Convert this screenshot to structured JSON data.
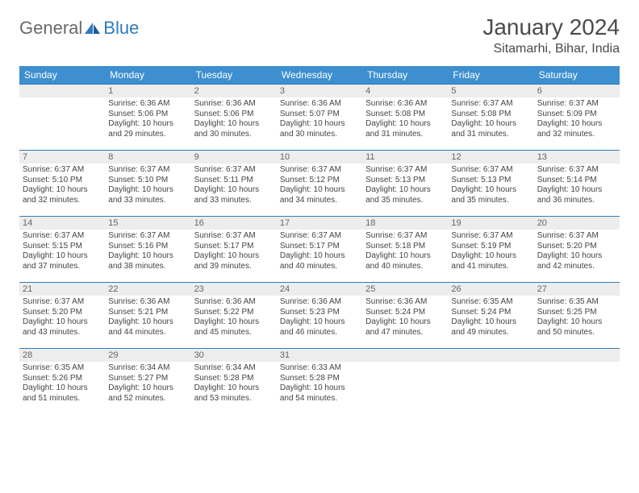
{
  "logo": {
    "general": "General",
    "blue": "Blue"
  },
  "title": "January 2024",
  "location": "Sitamarhi, Bihar, India",
  "weekdays": [
    "Sunday",
    "Monday",
    "Tuesday",
    "Wednesday",
    "Thursday",
    "Friday",
    "Saturday"
  ],
  "colors": {
    "header_bg": "#3d8fcf",
    "header_text": "#ffffff",
    "daynum_bg": "#ededed",
    "rule": "#2f7bbf",
    "text": "#444444",
    "title_color": "#4a4a4a"
  },
  "first_weekday_index": 1,
  "days": [
    {
      "n": 1,
      "sunrise": "6:36 AM",
      "sunset": "5:06 PM",
      "daylight": "10 hours and 29 minutes."
    },
    {
      "n": 2,
      "sunrise": "6:36 AM",
      "sunset": "5:06 PM",
      "daylight": "10 hours and 30 minutes."
    },
    {
      "n": 3,
      "sunrise": "6:36 AM",
      "sunset": "5:07 PM",
      "daylight": "10 hours and 30 minutes."
    },
    {
      "n": 4,
      "sunrise": "6:36 AM",
      "sunset": "5:08 PM",
      "daylight": "10 hours and 31 minutes."
    },
    {
      "n": 5,
      "sunrise": "6:37 AM",
      "sunset": "5:08 PM",
      "daylight": "10 hours and 31 minutes."
    },
    {
      "n": 6,
      "sunrise": "6:37 AM",
      "sunset": "5:09 PM",
      "daylight": "10 hours and 32 minutes."
    },
    {
      "n": 7,
      "sunrise": "6:37 AM",
      "sunset": "5:10 PM",
      "daylight": "10 hours and 32 minutes."
    },
    {
      "n": 8,
      "sunrise": "6:37 AM",
      "sunset": "5:10 PM",
      "daylight": "10 hours and 33 minutes."
    },
    {
      "n": 9,
      "sunrise": "6:37 AM",
      "sunset": "5:11 PM",
      "daylight": "10 hours and 33 minutes."
    },
    {
      "n": 10,
      "sunrise": "6:37 AM",
      "sunset": "5:12 PM",
      "daylight": "10 hours and 34 minutes."
    },
    {
      "n": 11,
      "sunrise": "6:37 AM",
      "sunset": "5:13 PM",
      "daylight": "10 hours and 35 minutes."
    },
    {
      "n": 12,
      "sunrise": "6:37 AM",
      "sunset": "5:13 PM",
      "daylight": "10 hours and 35 minutes."
    },
    {
      "n": 13,
      "sunrise": "6:37 AM",
      "sunset": "5:14 PM",
      "daylight": "10 hours and 36 minutes."
    },
    {
      "n": 14,
      "sunrise": "6:37 AM",
      "sunset": "5:15 PM",
      "daylight": "10 hours and 37 minutes."
    },
    {
      "n": 15,
      "sunrise": "6:37 AM",
      "sunset": "5:16 PM",
      "daylight": "10 hours and 38 minutes."
    },
    {
      "n": 16,
      "sunrise": "6:37 AM",
      "sunset": "5:17 PM",
      "daylight": "10 hours and 39 minutes."
    },
    {
      "n": 17,
      "sunrise": "6:37 AM",
      "sunset": "5:17 PM",
      "daylight": "10 hours and 40 minutes."
    },
    {
      "n": 18,
      "sunrise": "6:37 AM",
      "sunset": "5:18 PM",
      "daylight": "10 hours and 40 minutes."
    },
    {
      "n": 19,
      "sunrise": "6:37 AM",
      "sunset": "5:19 PM",
      "daylight": "10 hours and 41 minutes."
    },
    {
      "n": 20,
      "sunrise": "6:37 AM",
      "sunset": "5:20 PM",
      "daylight": "10 hours and 42 minutes."
    },
    {
      "n": 21,
      "sunrise": "6:37 AM",
      "sunset": "5:20 PM",
      "daylight": "10 hours and 43 minutes."
    },
    {
      "n": 22,
      "sunrise": "6:36 AM",
      "sunset": "5:21 PM",
      "daylight": "10 hours and 44 minutes."
    },
    {
      "n": 23,
      "sunrise": "6:36 AM",
      "sunset": "5:22 PM",
      "daylight": "10 hours and 45 minutes."
    },
    {
      "n": 24,
      "sunrise": "6:36 AM",
      "sunset": "5:23 PM",
      "daylight": "10 hours and 46 minutes."
    },
    {
      "n": 25,
      "sunrise": "6:36 AM",
      "sunset": "5:24 PM",
      "daylight": "10 hours and 47 minutes."
    },
    {
      "n": 26,
      "sunrise": "6:35 AM",
      "sunset": "5:24 PM",
      "daylight": "10 hours and 49 minutes."
    },
    {
      "n": 27,
      "sunrise": "6:35 AM",
      "sunset": "5:25 PM",
      "daylight": "10 hours and 50 minutes."
    },
    {
      "n": 28,
      "sunrise": "6:35 AM",
      "sunset": "5:26 PM",
      "daylight": "10 hours and 51 minutes."
    },
    {
      "n": 29,
      "sunrise": "6:34 AM",
      "sunset": "5:27 PM",
      "daylight": "10 hours and 52 minutes."
    },
    {
      "n": 30,
      "sunrise": "6:34 AM",
      "sunset": "5:28 PM",
      "daylight": "10 hours and 53 minutes."
    },
    {
      "n": 31,
      "sunrise": "6:33 AM",
      "sunset": "5:28 PM",
      "daylight": "10 hours and 54 minutes."
    }
  ],
  "labels": {
    "sunrise": "Sunrise:",
    "sunset": "Sunset:",
    "daylight": "Daylight:"
  }
}
